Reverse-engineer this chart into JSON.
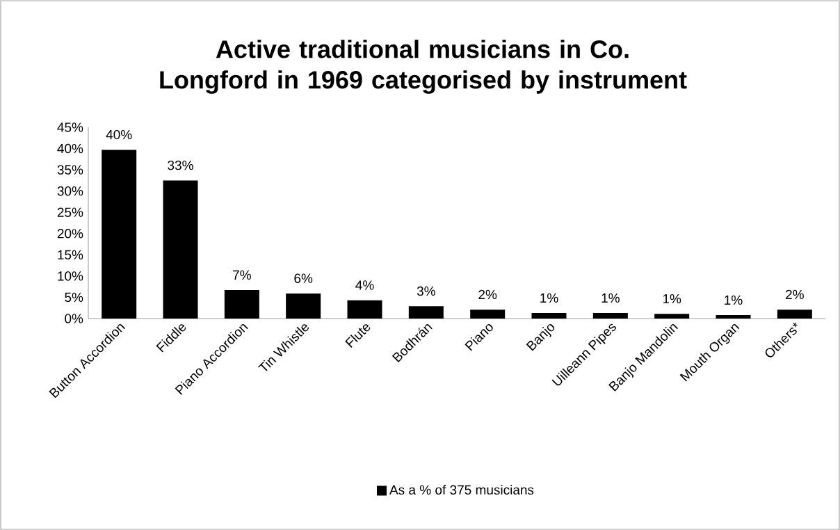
{
  "chart_data": {
    "type": "bar",
    "title": "Active traditional musicians in Co. Longford in 1969 categorised by instrument",
    "categories": [
      "Button Accordion",
      "Fiddle",
      "Piano Accordion",
      "Tin Whistle",
      "Flute",
      "Bodhrán",
      "Piano",
      "Banjo",
      "Uilleann Pipes",
      "Banjo Mandolin",
      "Mouth Organ",
      "Others*"
    ],
    "series": [
      {
        "name": "As a % of 375 musicians",
        "color": "#000000",
        "values": [
          39.7,
          32.5,
          6.7,
          5.9,
          4.3,
          2.9,
          2.1,
          1.3,
          1.3,
          1.1,
          0.8,
          2.1
        ],
        "value_labels": [
          "40%",
          "33%",
          "7%",
          "6%",
          "4%",
          "3%",
          "2%",
          "1%",
          "1%",
          "1%",
          "1%",
          "2%"
        ]
      }
    ],
    "ylim": [
      0,
      45
    ],
    "yticks": [
      {
        "value": 0,
        "label": "0%"
      },
      {
        "value": 5,
        "label": "5%"
      },
      {
        "value": 10,
        "label": "10%"
      },
      {
        "value": 15,
        "label": "15%"
      },
      {
        "value": 20,
        "label": "20%"
      },
      {
        "value": 25,
        "label": "25%"
      },
      {
        "value": 30,
        "label": "30%"
      },
      {
        "value": 35,
        "label": "35%"
      },
      {
        "value": 40,
        "label": "40%"
      },
      {
        "value": 45,
        "label": "45%"
      }
    ],
    "legend": "bottom",
    "grid": false
  }
}
